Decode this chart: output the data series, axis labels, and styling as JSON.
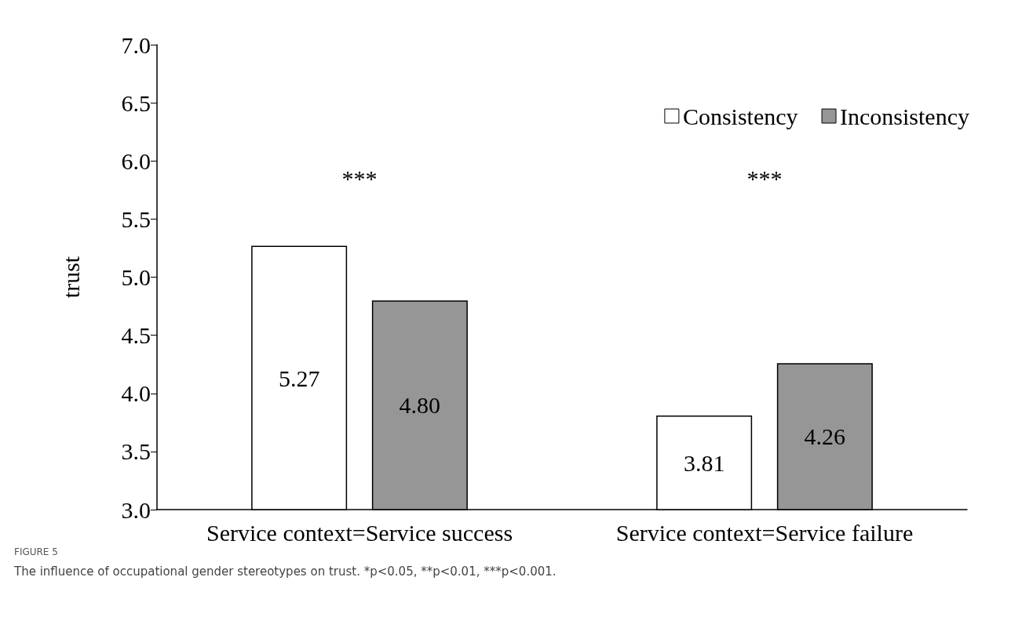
{
  "chart_data": {
    "type": "bar",
    "ylabel": "trust",
    "categories": [
      "Service context=Service success",
      "Service context=Service failure"
    ],
    "series": [
      {
        "name": "Consistency",
        "color": "#ffffff",
        "values": [
          5.27,
          3.81
        ],
        "value_labels": [
          "5.27",
          "3.81"
        ]
      },
      {
        "name": "Inconsistency",
        "color": "#969696",
        "values": [
          4.8,
          4.26
        ],
        "value_labels": [
          "4.80",
          "4.26"
        ]
      }
    ],
    "ylim": [
      3,
      7
    ],
    "yticks": [
      {
        "value": 3,
        "label": "3.0"
      },
      {
        "value": 3.5,
        "label": "3.5"
      },
      {
        "value": 4,
        "label": "4.0"
      },
      {
        "value": 4.5,
        "label": "4.5"
      },
      {
        "value": 5,
        "label": "5.0"
      },
      {
        "value": 5.5,
        "label": "5.5"
      },
      {
        "value": 6,
        "label": "6.0"
      },
      {
        "value": 6.5,
        "label": "6.5"
      },
      {
        "value": 7,
        "label": "7.0"
      }
    ],
    "grid": false,
    "legend": "top right",
    "annotations": [
      "***",
      "***",
      "FIGURE 5",
      "The influence of occupational gender stereotypes on trust. *p<0.05, **p<0.01, ***p<0.001."
    ]
  }
}
